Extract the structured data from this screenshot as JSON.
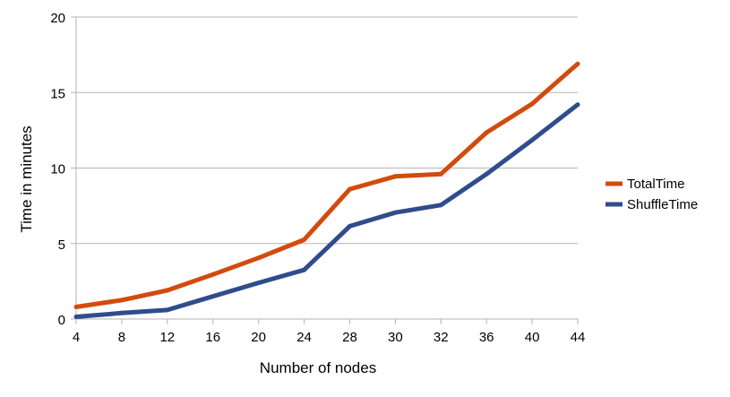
{
  "chart_data": {
    "type": "line",
    "title": "",
    "xlabel": "Number of nodes",
    "ylabel": "Time in minutes",
    "categories": [
      "4",
      "8",
      "12",
      "16",
      "20",
      "24",
      "28",
      "30",
      "32",
      "36",
      "40",
      "44"
    ],
    "ylim": [
      0,
      20
    ],
    "yticks": [
      0,
      5,
      10,
      15,
      20
    ],
    "grid": "horizontal",
    "legend_position": "right",
    "series": [
      {
        "name": "TotalTime",
        "color": "#d14b0f",
        "values": [
          0.8,
          1.25,
          1.9,
          2.95,
          4.05,
          5.25,
          8.6,
          9.45,
          9.6,
          12.35,
          14.25,
          16.9
        ]
      },
      {
        "name": "ShuffleTime",
        "color": "#2f4d8c",
        "values": [
          0.15,
          0.4,
          0.6,
          1.5,
          2.4,
          3.25,
          6.15,
          7.05,
          7.55,
          9.6,
          11.85,
          14.2
        ]
      }
    ]
  }
}
